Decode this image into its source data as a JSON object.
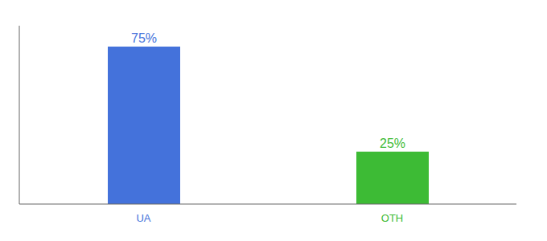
{
  "chart_data": {
    "type": "bar",
    "categories": [
      "UA",
      "OTH"
    ],
    "values": [
      75,
      25
    ],
    "value_labels": [
      "75%",
      "25%"
    ],
    "colors": [
      "#4472db",
      "#3dbb35"
    ],
    "ylim": [
      0,
      85
    ],
    "data_labels": true,
    "tick_labels": "x"
  }
}
